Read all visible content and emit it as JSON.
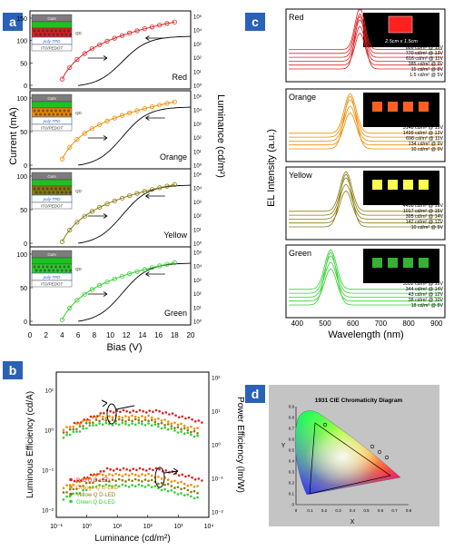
{
  "panels": {
    "a": {
      "label": "a",
      "ylabel_left": "Current (mA)",
      "ylabel_right": "Luminance (cd/m²)",
      "xlabel": "Bias (V)",
      "xticks": [
        "0",
        "2",
        "4",
        "6",
        "8",
        "10",
        "12",
        "14",
        "16",
        "18",
        "20"
      ],
      "left_ticks_big": [
        "0",
        "50",
        "100",
        "150"
      ],
      "left_ticks_small": [
        "0",
        "50",
        "100"
      ],
      "right_ticks": [
        "10⁰",
        "10¹",
        "10²",
        "10³",
        "10⁴",
        "10⁵"
      ],
      "subpanels": [
        {
          "name": "Red",
          "color": "#e02020"
        },
        {
          "name": "Orange",
          "color": "#f08a00"
        },
        {
          "name": "Yellow",
          "color": "#8a7a10"
        },
        {
          "name": "Green",
          "color": "#30d030"
        }
      ],
      "stack_labels": [
        "GaN",
        "QD",
        "poly-TPD",
        "ITO/PEDOT"
      ]
    },
    "b": {
      "label": "b",
      "ylabel_left": "Luminous Efficiency (cd/A)",
      "ylabel_right": "Power Efficiency (lm/W)",
      "xlabel": "Luminance (cd/m²)",
      "xticks": [
        "10⁻¹",
        "10⁰",
        "10¹",
        "10²",
        "10³",
        "10⁴"
      ],
      "left_ticks": [
        "10⁻²",
        "10⁻¹",
        "10⁰",
        "10¹"
      ],
      "right_ticks": [
        "10⁻²",
        "10⁻¹",
        "10⁰",
        "10¹",
        "10²"
      ],
      "legend": [
        {
          "label": "Red Q D-LED",
          "color": "#e02020"
        },
        {
          "label": "Orange Q D-LED",
          "color": "#f08a00"
        },
        {
          "label": "Yellow Q D-LED",
          "color": "#8a7a10"
        },
        {
          "label": "Green Q D-LED",
          "color": "#30d030"
        }
      ]
    },
    "c": {
      "label": "c",
      "ylabel": "EL Intensity (a.u.)",
      "xlabel": "Wavelength (nm)",
      "xticks": [
        "400",
        "500",
        "600",
        "700",
        "800",
        "900"
      ],
      "size_note": "2.5cm x 1.5cm",
      "subpanels": [
        {
          "name": "Red",
          "color": "#e02020",
          "peak": 625,
          "rows": [
            "886 cd/m² @ 15V",
            "770 cd/m² @ 13V",
            "616 cd/m² @ 11V",
            "385 cd/m² @ 9V",
            "15 cd/m² @ 8V",
            "1.5 cd/m² @ 5V"
          ]
        },
        {
          "name": "Orange",
          "color": "#f08a00",
          "peak": 590,
          "rows": [
            "3148 cd/m² @ 15V",
            "1499 cd/m² @ 12V",
            "698 cd/m² @ 11V",
            "134 cd/m² @ 9V",
            "10 cd/m² @ 9V"
          ]
        },
        {
          "name": "Yellow",
          "color": "#8a7a10",
          "peak": 575,
          "rows": [
            "4458 cd/m² @ 19V",
            "1017 cd/m² @ 15V",
            "395 cd/m² @ 14V",
            "142 cd/m² @ 12V",
            "10 cd/m² @ 9V"
          ]
        },
        {
          "name": "Green",
          "color": "#30d030",
          "peak": 520,
          "rows": [
            "3532 cd/m² @ 15V",
            "344 cd/m² @ 14V",
            "43 cd/m² @ 12V",
            "38 cd/m² @ 10V",
            "18 cd/m² @ 8V"
          ]
        }
      ]
    },
    "d": {
      "label": "d",
      "title": "1931  CIE Chromaticity Diagram",
      "xlabel": "X",
      "ylabel": "Y",
      "xticks": [
        "0",
        "0.1",
        "0.2",
        "0.3",
        "0.4",
        "0.5",
        "0.6",
        "0.7",
        "0.8"
      ],
      "yticks": [
        "0",
        "0.1",
        "0.2",
        "0.3",
        "0.4",
        "0.5",
        "0.6",
        "0.7",
        "0.8",
        "0.9"
      ]
    }
  }
}
